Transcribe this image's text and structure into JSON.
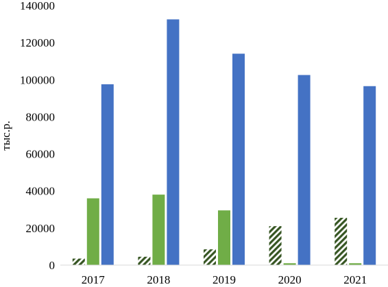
{
  "chart_data": {
    "type": "bar",
    "title": "",
    "xlabel": "",
    "ylabel": "тыс.р.",
    "ylim": [
      0,
      140000
    ],
    "yticks": [
      0,
      20000,
      40000,
      60000,
      80000,
      100000,
      120000,
      140000
    ],
    "categories": [
      "2017",
      "2018",
      "2019",
      "2020",
      "2021"
    ],
    "grid": false,
    "legend": "none",
    "series": [
      {
        "values": [
          3500,
          4500,
          8500,
          21000,
          25500
        ],
        "color": "#375623",
        "pattern": "diagonal-hatch"
      },
      {
        "values": [
          36000,
          38000,
          29500,
          1000,
          1000
        ],
        "color": "#70ad47",
        "pattern": "solid"
      },
      {
        "values": [
          97500,
          132500,
          114000,
          102500,
          96500
        ],
        "color": "#4472c4",
        "pattern": "solid"
      }
    ]
  }
}
